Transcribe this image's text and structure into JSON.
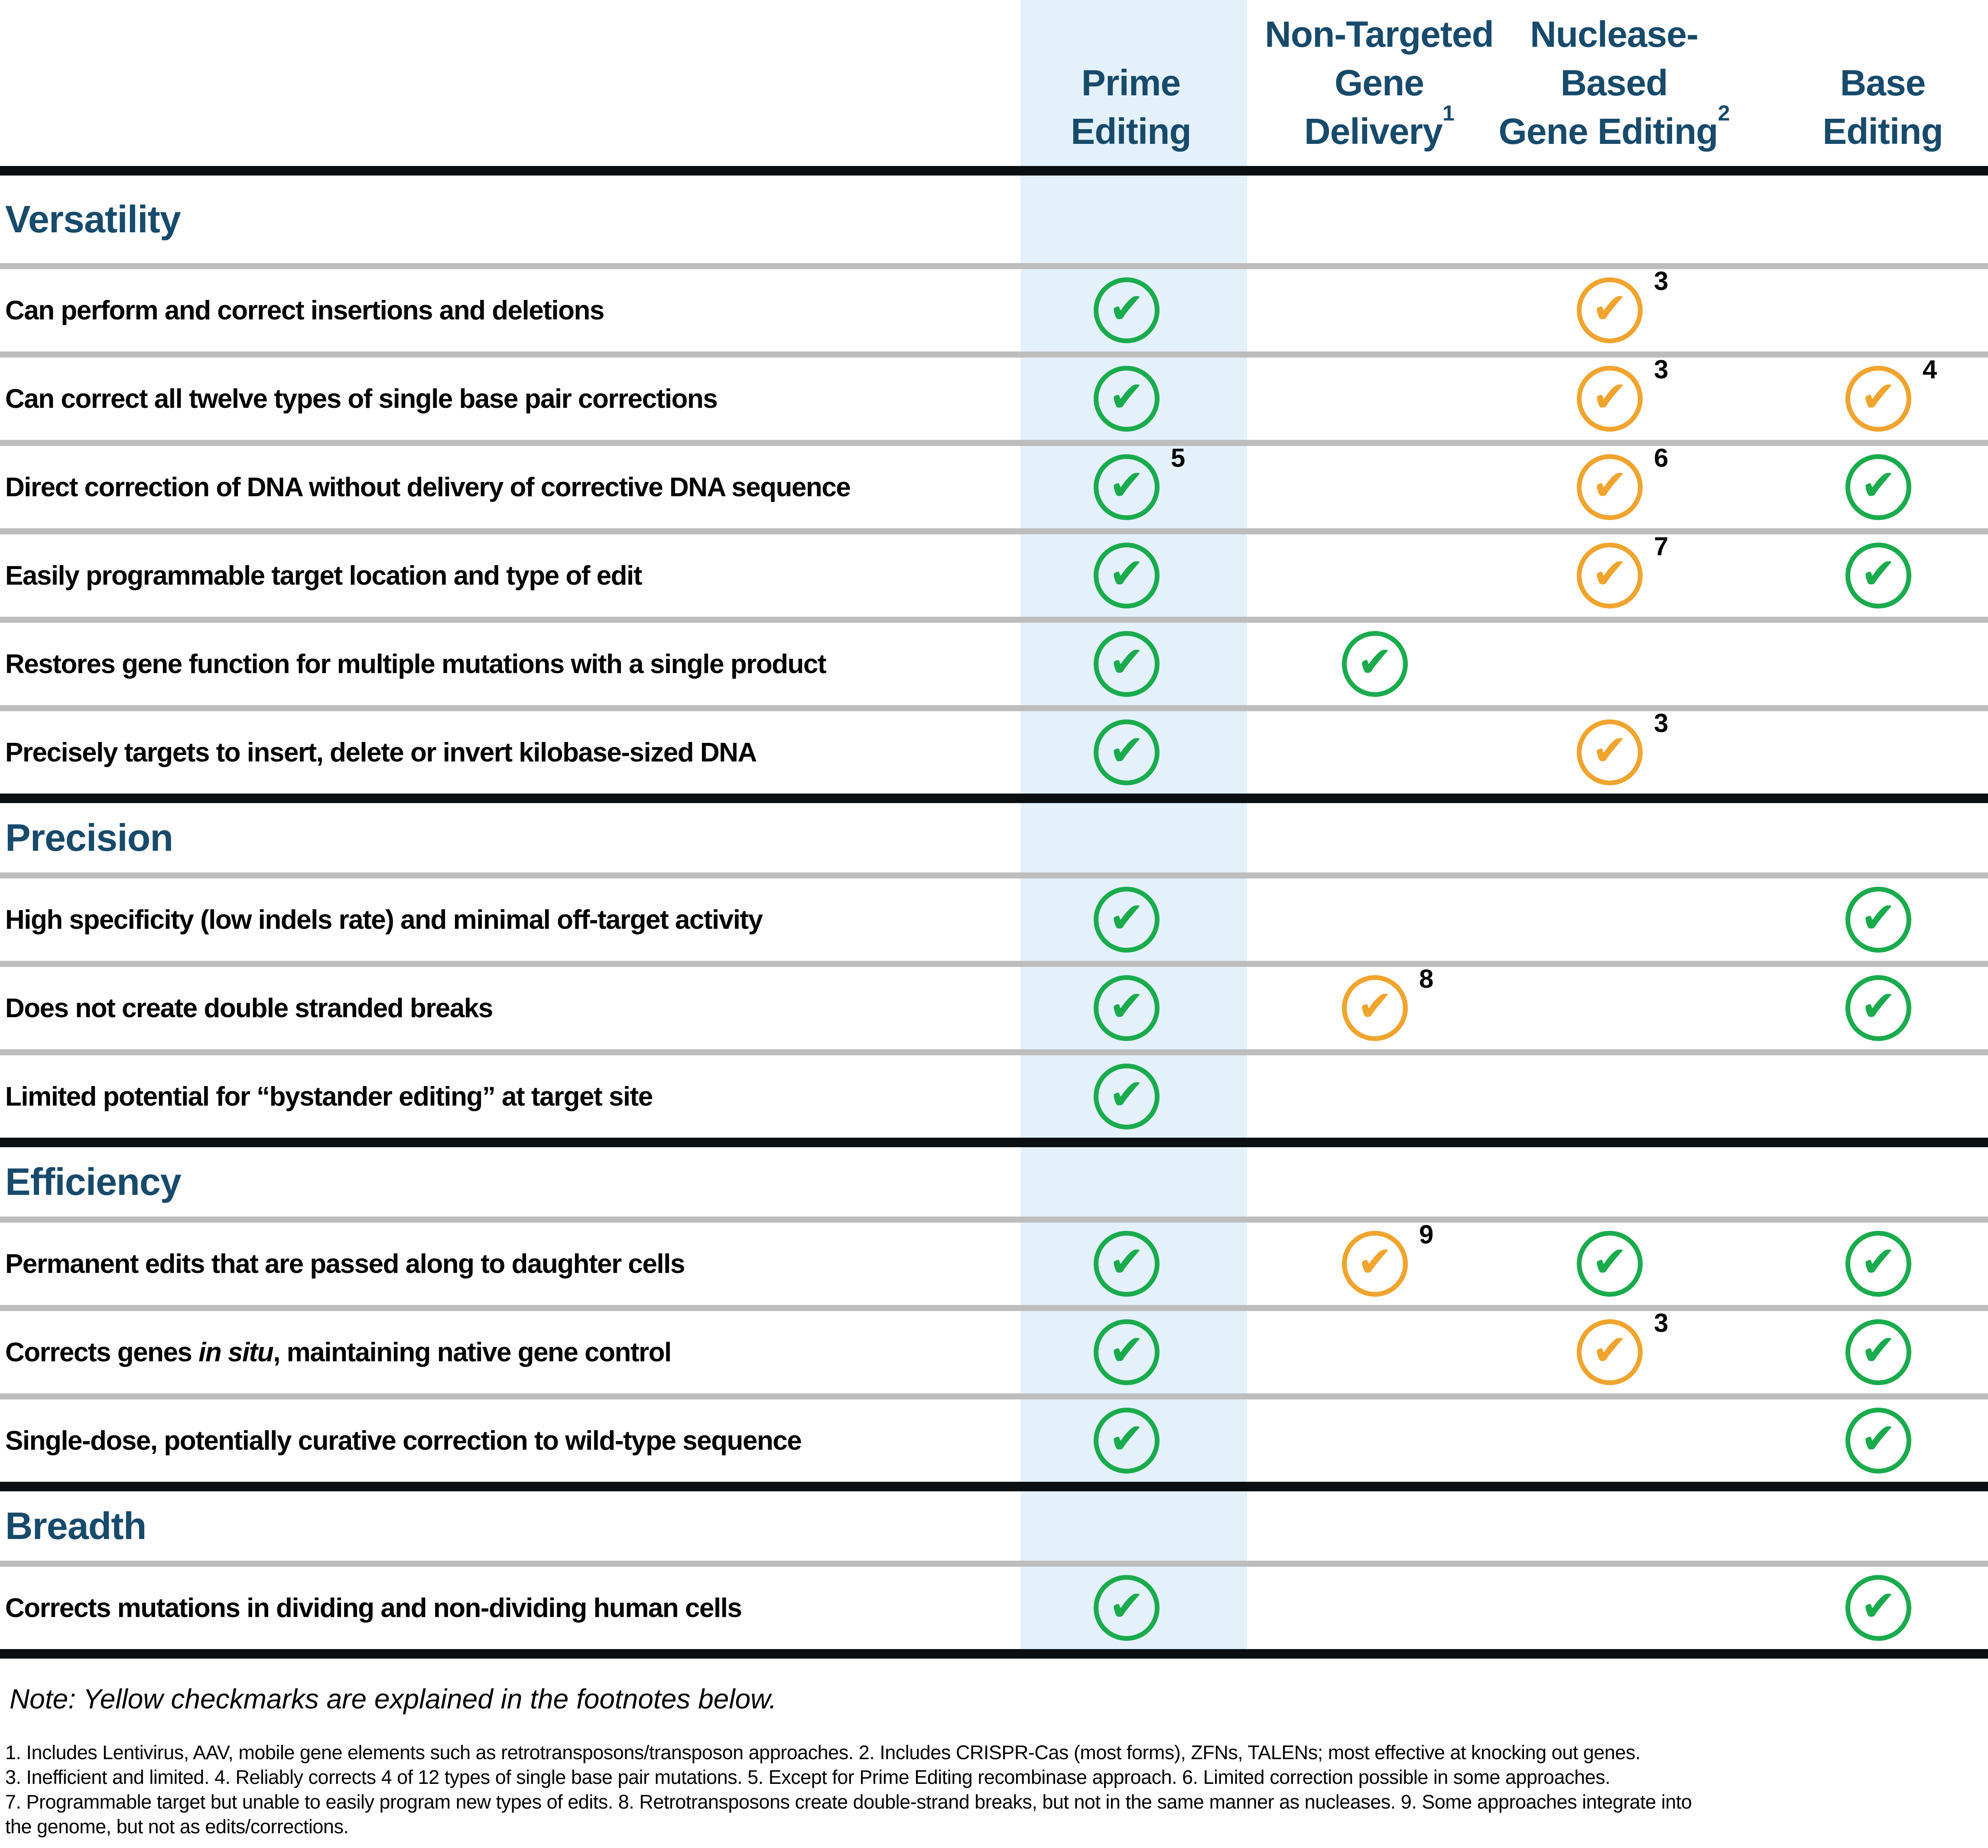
{
  "colors": {
    "accent_navy": "#174A6B",
    "check_green": "#1AAB4C",
    "check_yellow": "#F0A42E",
    "highlight_blue": "#E4F1FB",
    "divider_gray": "#BDBDBD",
    "line_black": "#0B0F12"
  },
  "header": {
    "columns": [
      {
        "id": "prime",
        "lines": [
          "Prime",
          "Editing"
        ],
        "sup": "",
        "highlight": true
      },
      {
        "id": "non_targeted",
        "lines": [
          "Non-Targeted",
          "Gene",
          "Delivery"
        ],
        "sup": "1",
        "highlight": false
      },
      {
        "id": "nuclease",
        "lines": [
          "Nuclease-",
          "Based",
          "Gene Editing"
        ],
        "sup": "2",
        "highlight": false
      },
      {
        "id": "base",
        "lines": [
          "Base",
          "Editing"
        ],
        "sup": "",
        "highlight": false
      }
    ]
  },
  "sections": [
    {
      "title": "Versatility",
      "rows": [
        {
          "label": [
            {
              "text": "Can perform and correct insertions and deletions"
            }
          ],
          "checks": {
            "prime": {
              "color": "green",
              "sup": ""
            },
            "nuclease": {
              "color": "yellow",
              "sup": "3"
            }
          }
        },
        {
          "label": [
            {
              "text": "Can correct all twelve types of single base pair corrections"
            }
          ],
          "checks": {
            "prime": {
              "color": "green",
              "sup": ""
            },
            "nuclease": {
              "color": "yellow",
              "sup": "3"
            },
            "base": {
              "color": "yellow",
              "sup": "4"
            }
          }
        },
        {
          "label": [
            {
              "text": "Direct correction of DNA without delivery of corrective DNA sequence"
            }
          ],
          "checks": {
            "prime": {
              "color": "green",
              "sup": "5"
            },
            "nuclease": {
              "color": "yellow",
              "sup": "6"
            },
            "base": {
              "color": "green",
              "sup": ""
            }
          }
        },
        {
          "label": [
            {
              "text": "Easily programmable target location and type of edit"
            }
          ],
          "checks": {
            "prime": {
              "color": "green",
              "sup": ""
            },
            "nuclease": {
              "color": "yellow",
              "sup": "7"
            },
            "base": {
              "color": "green",
              "sup": ""
            }
          }
        },
        {
          "label": [
            {
              "text": "Restores gene function for multiple mutations with a single product"
            }
          ],
          "checks": {
            "prime": {
              "color": "green",
              "sup": ""
            },
            "non_targeted": {
              "color": "green",
              "sup": ""
            }
          }
        },
        {
          "label": [
            {
              "text": "Precisely targets to insert, delete or invert kilobase-sized DNA"
            }
          ],
          "checks": {
            "prime": {
              "color": "green",
              "sup": ""
            },
            "nuclease": {
              "color": "yellow",
              "sup": "3"
            }
          }
        }
      ]
    },
    {
      "title": "Precision",
      "rows": [
        {
          "label": [
            {
              "text": "High specificity (low indels rate) and minimal off-target activity"
            }
          ],
          "checks": {
            "prime": {
              "color": "green",
              "sup": ""
            },
            "base": {
              "color": "green",
              "sup": ""
            }
          }
        },
        {
          "label": [
            {
              "text": "Does not create double stranded breaks"
            }
          ],
          "checks": {
            "prime": {
              "color": "green",
              "sup": ""
            },
            "non_targeted": {
              "color": "yellow",
              "sup": "8"
            },
            "base": {
              "color": "green",
              "sup": ""
            }
          }
        },
        {
          "label": [
            {
              "text": "Limited potential for “bystander editing” at target site"
            }
          ],
          "checks": {
            "prime": {
              "color": "green",
              "sup": ""
            }
          }
        }
      ]
    },
    {
      "title": "Efficiency",
      "rows": [
        {
          "label": [
            {
              "text": "Permanent edits that are passed along to daughter cells"
            }
          ],
          "checks": {
            "prime": {
              "color": "green",
              "sup": ""
            },
            "non_targeted": {
              "color": "yellow",
              "sup": "9"
            },
            "nuclease": {
              "color": "green",
              "sup": ""
            },
            "base": {
              "color": "green",
              "sup": ""
            }
          }
        },
        {
          "label": [
            {
              "text": "Corrects genes "
            },
            {
              "text": "in situ",
              "italic": true
            },
            {
              "text": ", maintaining native gene control"
            }
          ],
          "checks": {
            "prime": {
              "color": "green",
              "sup": ""
            },
            "nuclease": {
              "color": "yellow",
              "sup": "3"
            },
            "base": {
              "color": "green",
              "sup": ""
            }
          }
        },
        {
          "label": [
            {
              "text": "Single-dose, potentially curative correction to wild-type sequence"
            }
          ],
          "checks": {
            "prime": {
              "color": "green",
              "sup": ""
            },
            "base": {
              "color": "green",
              "sup": ""
            }
          }
        }
      ]
    },
    {
      "title": "Breadth",
      "rows": [
        {
          "label": [
            {
              "text": "Corrects mutations in dividing and non-dividing human cells"
            }
          ],
          "checks": {
            "prime": {
              "color": "green",
              "sup": ""
            },
            "base": {
              "color": "green",
              "sup": ""
            }
          }
        }
      ]
    }
  ],
  "note": "Note: Yellow checkmarks are explained in the footnotes below.",
  "footnotes": [
    "1. Includes Lentivirus, AAV, mobile gene elements such as retrotransposons/transposon approaches. 2. Includes CRISPR-Cas (most forms), ZFNs, TALENs; most effective at knocking out genes.",
    "3. Inefficient and limited. 4. Reliably corrects 4 of 12 types of single base pair mutations. 5. Except for Prime Editing recombinase approach. 6. Limited correction possible in some approaches.",
    "7. Programmable target but unable to easily program new types of edits. 8. Retrotransposons create double-strand breaks, but not in the same manner as nucleases. 9. Some approaches integrate into",
    "the genome, but not as edits/corrections."
  ],
  "chart_data": {
    "type": "table",
    "title": "",
    "columns": [
      "Prime Editing",
      "Non-Targeted Gene Delivery (1)",
      "Nuclease-Based Gene Editing (2)",
      "Base Editing"
    ],
    "rows": [
      {
        "section": "Versatility",
        "label": "Can perform and correct insertions and deletions",
        "prime": "green",
        "non_targeted": "",
        "nuclease": "yellow (3)",
        "base": ""
      },
      {
        "section": "Versatility",
        "label": "Can correct all twelve types of single base pair corrections",
        "prime": "green",
        "non_targeted": "",
        "nuclease": "yellow (3)",
        "base": "yellow (4)"
      },
      {
        "section": "Versatility",
        "label": "Direct correction of DNA without delivery of corrective DNA sequence",
        "prime": "green (5)",
        "non_targeted": "",
        "nuclease": "yellow (6)",
        "base": "green"
      },
      {
        "section": "Versatility",
        "label": "Easily programmable target location and type of edit",
        "prime": "green",
        "non_targeted": "",
        "nuclease": "yellow (7)",
        "base": "green"
      },
      {
        "section": "Versatility",
        "label": "Restores gene function for multiple mutations with a single product",
        "prime": "green",
        "non_targeted": "green",
        "nuclease": "",
        "base": ""
      },
      {
        "section": "Versatility",
        "label": "Precisely targets to insert, delete or invert kilobase-sized DNA",
        "prime": "green",
        "non_targeted": "",
        "nuclease": "yellow (3)",
        "base": ""
      },
      {
        "section": "Precision",
        "label": "High specificity (low indels rate) and minimal off-target activity",
        "prime": "green",
        "non_targeted": "",
        "nuclease": "",
        "base": "green"
      },
      {
        "section": "Precision",
        "label": "Does not create double stranded breaks",
        "prime": "green",
        "non_targeted": "yellow (8)",
        "nuclease": "",
        "base": "green"
      },
      {
        "section": "Precision",
        "label": "Limited potential for “bystander editing” at target site",
        "prime": "green",
        "non_targeted": "",
        "nuclease": "",
        "base": ""
      },
      {
        "section": "Efficiency",
        "label": "Permanent edits that are passed along to daughter cells",
        "prime": "green",
        "non_targeted": "yellow (9)",
        "nuclease": "green",
        "base": "green"
      },
      {
        "section": "Efficiency",
        "label": "Corrects genes in situ, maintaining native gene control",
        "prime": "green",
        "non_targeted": "",
        "nuclease": "yellow (3)",
        "base": "green"
      },
      {
        "section": "Efficiency",
        "label": "Single-dose, potentially curative correction to wild-type sequence",
        "prime": "green",
        "non_targeted": "",
        "nuclease": "",
        "base": "green"
      },
      {
        "section": "Breadth",
        "label": "Corrects mutations in dividing and non-dividing human cells",
        "prime": "green",
        "non_targeted": "",
        "nuclease": "",
        "base": "green"
      }
    ],
    "legend": [
      "green circled check = yes",
      "yellow circled check = qualified yes, see footnote"
    ]
  }
}
